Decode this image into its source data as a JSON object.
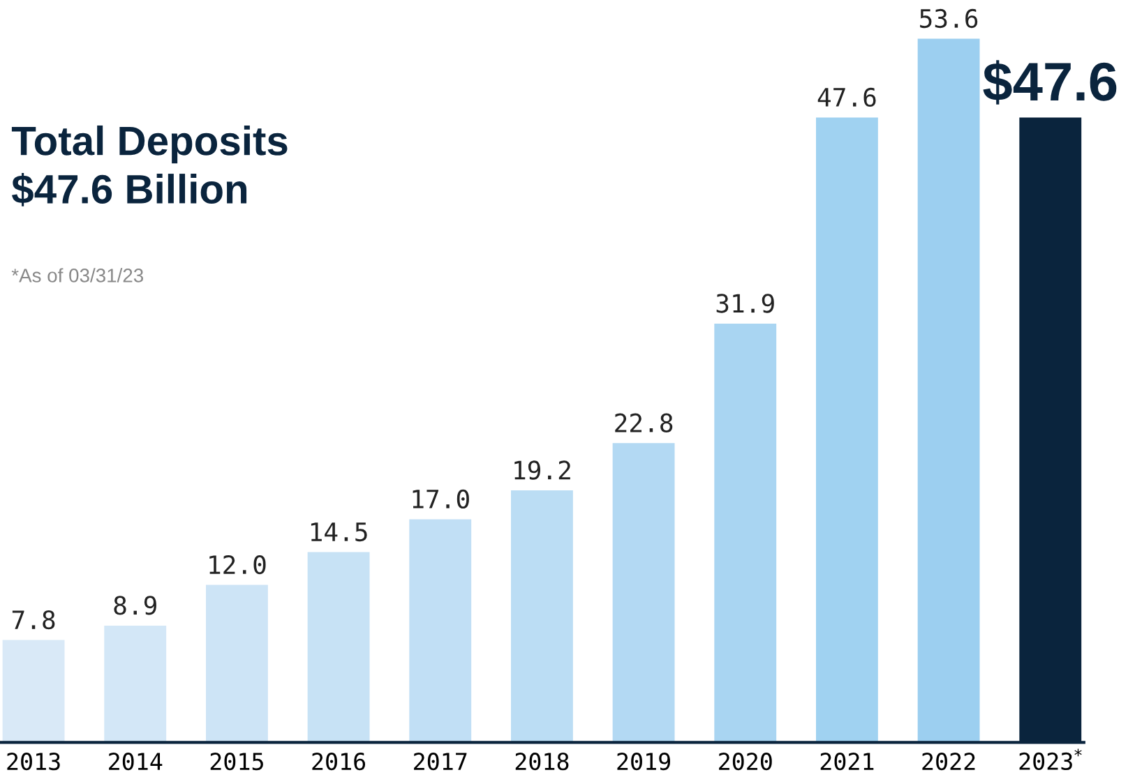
{
  "chart_data": {
    "type": "bar",
    "title": "Total Deposits\n$47.6 Billion",
    "subtitle": "*As of 03/31/23",
    "categories": [
      "2013",
      "2014",
      "2015",
      "2016",
      "2017",
      "2018",
      "2019",
      "2020",
      "2021",
      "2022",
      "2023$^{*}$"
    ],
    "values": [
      7.8,
      8.9,
      12.0,
      14.5,
      17.0,
      19.2,
      22.8,
      31.9,
      47.6,
      53.6,
      47.6
    ],
    "value_labels": [
      "7.8",
      "8.9",
      "12.0",
      "14.5",
      "17.0",
      "19.2",
      "22.8",
      "31.9",
      "47.6",
      "53.6",
      "$47.6"
    ],
    "colors": [
      "#d9e9f7",
      "#d3e7f7",
      "#cde4f6",
      "#c7e2f5",
      "#c1dff5",
      "#bbddf4",
      "#b3d9f3",
      "#a9d5f2",
      "#a0d2f1",
      "#9ccff0",
      "#0a243d"
    ],
    "grid": false,
    "legend": false
  }
}
